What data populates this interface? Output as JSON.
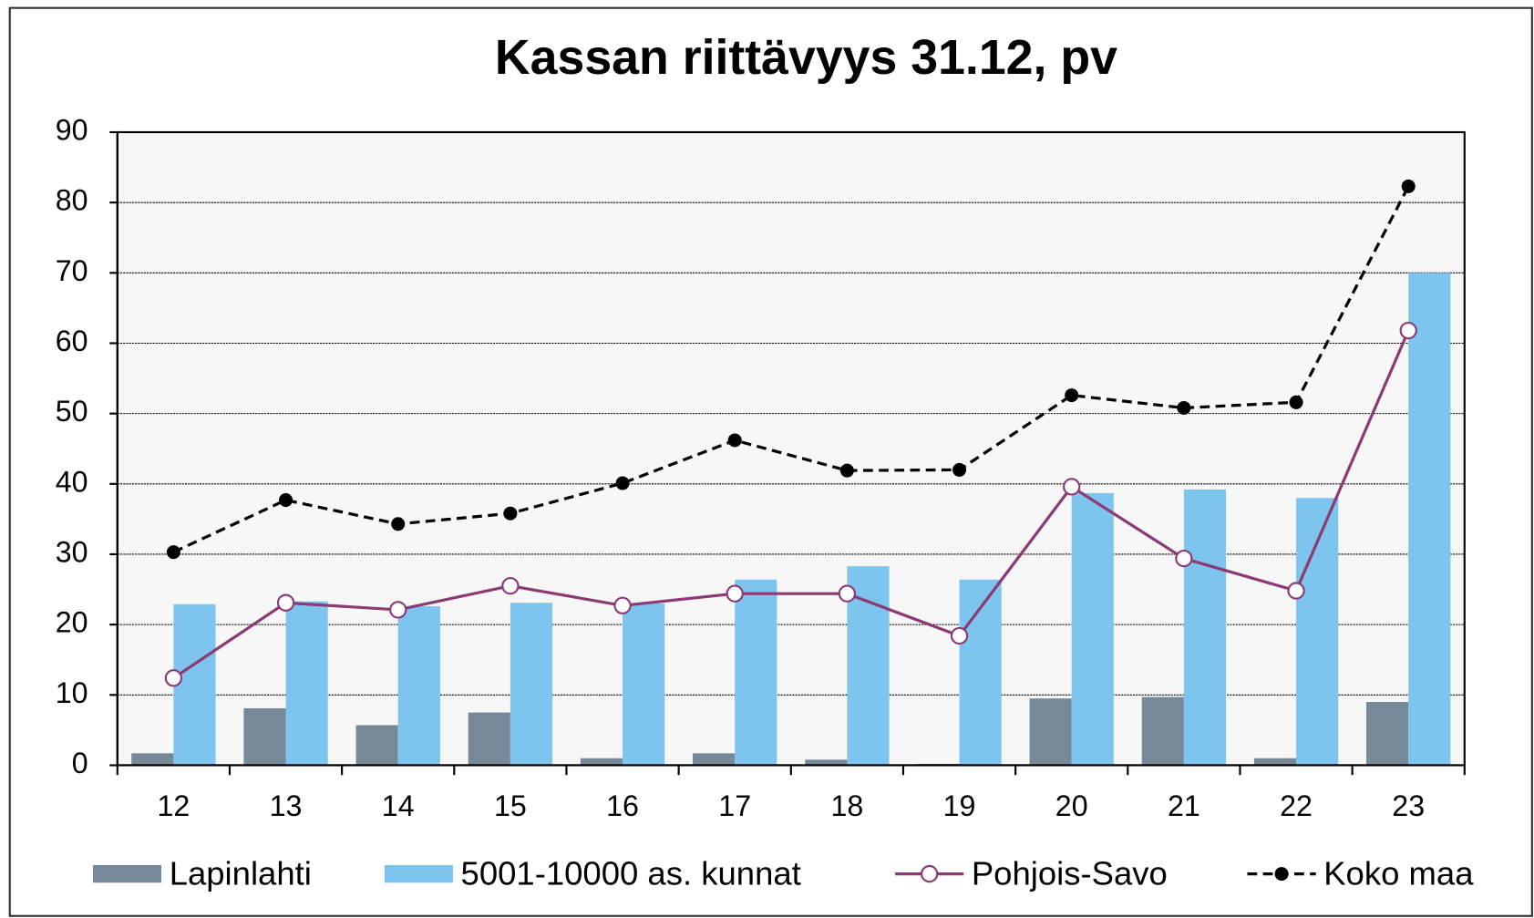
{
  "chart_data": {
    "type": "bar",
    "title": "Kassan riittävyys 31.12, pv",
    "categories": [
      "12",
      "13",
      "14",
      "15",
      "16",
      "17",
      "18",
      "19",
      "20",
      "21",
      "22",
      "23"
    ],
    "series": [
      {
        "name": "Lapinlahti",
        "type": "bar",
        "color": "#778899",
        "values": [
          1.7,
          8.1,
          5.7,
          7.5,
          1.0,
          1.7,
          0.8,
          0.2,
          9.5,
          9.7,
          1.0,
          9.0
        ]
      },
      {
        "name": "5001-10000 as. kunnat",
        "type": "bar",
        "color": "#7dc5ee",
        "values": [
          22.9,
          23.3,
          22.6,
          23.1,
          23.0,
          26.4,
          28.3,
          26.4,
          38.7,
          39.2,
          38.0,
          70.0
        ]
      },
      {
        "name": "Pohjois-Savo",
        "type": "line",
        "color": "#8b3a74",
        "marker": "hollow",
        "dashed": false,
        "values": [
          12.4,
          23.1,
          22.1,
          25.5,
          22.7,
          24.4,
          24.4,
          18.4,
          39.6,
          29.4,
          24.8,
          61.8
        ]
      },
      {
        "name": "Koko maa",
        "type": "line",
        "color": "#000000",
        "marker": "filled",
        "dashed": true,
        "values": [
          30.3,
          37.7,
          34.3,
          35.8,
          40.1,
          46.2,
          41.9,
          42.0,
          52.6,
          50.8,
          51.6,
          82.3
        ]
      }
    ],
    "ylim": [
      0,
      90
    ],
    "yticks": [
      0,
      10,
      20,
      30,
      40,
      50,
      60,
      70,
      80,
      90
    ],
    "grid": true,
    "legend": "bottom"
  }
}
